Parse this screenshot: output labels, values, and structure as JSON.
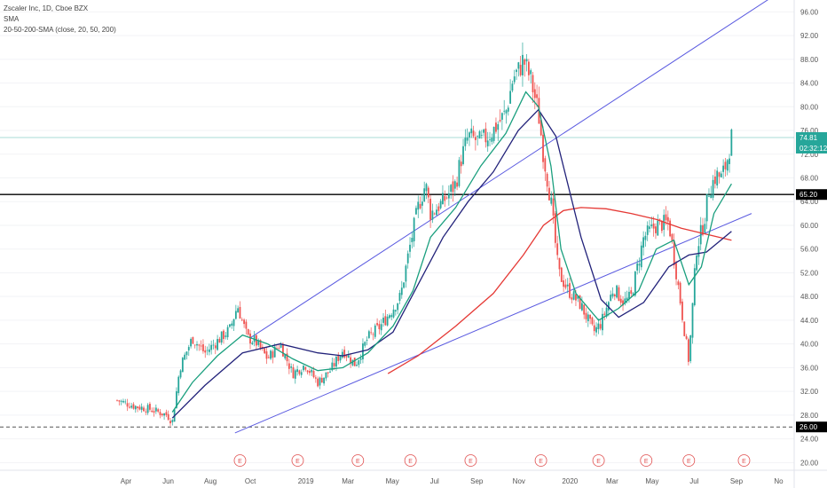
{
  "legend": {
    "title": "Zscaler Inc, 1D, Cboe BZX",
    "indicator1": "SMA",
    "indicator2": "20-50-200-SMA (close, 20, 50, 200)"
  },
  "price_badges": {
    "last_price": "74.81",
    "countdown": "02:32:12",
    "hline_price": "65.20",
    "dashed_price": "26.00"
  },
  "colors": {
    "candle_up": "#26a69a",
    "candle_down": "#ef5350",
    "sma20": "#1a9f7e",
    "sma50": "#22227a",
    "sma200": "#e53935",
    "trendline": "#5a5ae0",
    "last_price_line": "#26a69a",
    "event": "#e05050"
  },
  "events": {
    "label": "E"
  },
  "chart_data": {
    "type": "candlestick",
    "y_axis": {
      "ticks": [
        "96.00",
        "92.00",
        "88.00",
        "84.00",
        "80.00",
        "76.00",
        "72.00",
        "68.00",
        "64.00",
        "60.00",
        "56.00",
        "52.00",
        "48.00",
        "44.00",
        "40.00",
        "36.00",
        "32.00",
        "28.00",
        "24.00",
        "20.00"
      ],
      "range": [
        19,
        98
      ]
    },
    "x_axis": {
      "labels": [
        "Apr",
        "Jun",
        "Aug",
        "Oct",
        "2019",
        "Mar",
        "May",
        "Jul",
        "Sep",
        "Nov",
        "2020",
        "Mar",
        "May",
        "Jul",
        "Sep",
        "No"
      ],
      "range": [
        0,
        27
      ]
    },
    "price_path": [
      [
        0.0,
        30.5
      ],
      [
        0.7,
        29.5
      ],
      [
        1.3,
        29.0
      ],
      [
        2.0,
        28.0
      ],
      [
        2.2,
        26.8
      ],
      [
        2.5,
        36.0
      ],
      [
        3.0,
        41.0
      ],
      [
        3.5,
        38.5
      ],
      [
        4.0,
        40.5
      ],
      [
        4.5,
        42.5
      ],
      [
        4.8,
        46.5
      ],
      [
        5.2,
        41.0
      ],
      [
        5.5,
        40.5
      ],
      [
        6.0,
        37.5
      ],
      [
        6.5,
        40.0
      ],
      [
        7.0,
        35.0
      ],
      [
        7.5,
        36.5
      ],
      [
        8.0,
        33.5
      ],
      [
        8.5,
        35.5
      ],
      [
        9.0,
        39.0
      ],
      [
        9.5,
        36.5
      ],
      [
        10.0,
        41.0
      ],
      [
        10.5,
        43.0
      ],
      [
        11.0,
        46.0
      ],
      [
        11.3,
        48.0
      ],
      [
        11.7,
        57.0
      ],
      [
        12.0,
        63.0
      ],
      [
        12.3,
        67.0
      ],
      [
        12.5,
        62.0
      ],
      [
        13.0,
        64.0
      ],
      [
        13.5,
        67.0
      ],
      [
        13.7,
        71.0
      ],
      [
        14.0,
        75.0
      ],
      [
        14.5,
        74.0
      ],
      [
        15.0,
        76.0
      ],
      [
        15.5,
        79.0
      ],
      [
        15.8,
        85.0
      ],
      [
        16.0,
        86.0
      ],
      [
        16.2,
        88.0
      ],
      [
        16.5,
        84.5
      ],
      [
        16.8,
        79.0
      ],
      [
        17.0,
        72.0
      ],
      [
        17.3,
        64.0
      ],
      [
        17.6,
        52.0
      ],
      [
        18.0,
        49.0
      ],
      [
        18.5,
        46.5
      ],
      [
        19.0,
        42.0
      ],
      [
        19.3,
        43.5
      ],
      [
        19.8,
        49.5
      ],
      [
        20.2,
        47.0
      ],
      [
        20.5,
        48.0
      ],
      [
        21.0,
        58.0
      ],
      [
        21.5,
        60.0
      ],
      [
        22.0,
        60.5
      ],
      [
        22.3,
        52.0
      ],
      [
        22.6,
        43.0
      ],
      [
        22.8,
        37.0
      ],
      [
        23.1,
        56.0
      ],
      [
        23.4,
        60.5
      ],
      [
        23.6,
        66.0
      ],
      [
        23.9,
        68.5
      ],
      [
        24.1,
        68.0
      ],
      [
        24.3,
        70.5
      ],
      [
        24.5,
        74.81
      ]
    ],
    "sma20_path": [
      [
        2.2,
        28.5
      ],
      [
        3.0,
        33.5
      ],
      [
        4.0,
        38.0
      ],
      [
        5.0,
        41.5
      ],
      [
        6.0,
        40.0
      ],
      [
        7.0,
        37.5
      ],
      [
        8.0,
        35.5
      ],
      [
        9.0,
        36.0
      ],
      [
        10.0,
        38.5
      ],
      [
        11.0,
        43.0
      ],
      [
        11.8,
        49.0
      ],
      [
        12.5,
        58.0
      ],
      [
        13.5,
        63.0
      ],
      [
        14.5,
        70.0
      ],
      [
        15.5,
        75.5
      ],
      [
        16.3,
        82.5
      ],
      [
        16.8,
        80.0
      ],
      [
        17.3,
        70.0
      ],
      [
        17.7,
        56.0
      ],
      [
        18.3,
        48.5
      ],
      [
        19.2,
        44.0
      ],
      [
        20.0,
        46.0
      ],
      [
        20.8,
        49.0
      ],
      [
        21.5,
        56.0
      ],
      [
        22.2,
        57.5
      ],
      [
        22.8,
        50.0
      ],
      [
        23.3,
        53.0
      ],
      [
        23.8,
        62.0
      ],
      [
        24.5,
        67.0
      ]
    ],
    "sma50_path": [
      [
        2.2,
        27.5
      ],
      [
        3.5,
        33.0
      ],
      [
        5.0,
        38.5
      ],
      [
        6.5,
        40.0
      ],
      [
        8.0,
        38.5
      ],
      [
        9.0,
        38.0
      ],
      [
        10.0,
        39.0
      ],
      [
        11.0,
        42.0
      ],
      [
        12.0,
        50.0
      ],
      [
        13.0,
        58.0
      ],
      [
        14.0,
        64.0
      ],
      [
        15.0,
        69.0
      ],
      [
        16.0,
        76.0
      ],
      [
        16.8,
        79.5
      ],
      [
        17.5,
        75.0
      ],
      [
        18.5,
        58.0
      ],
      [
        19.3,
        47.5
      ],
      [
        20.0,
        44.5
      ],
      [
        21.0,
        47.0
      ],
      [
        22.0,
        53.0
      ],
      [
        22.8,
        55.0
      ],
      [
        23.5,
        55.5
      ],
      [
        24.5,
        59.0
      ]
    ],
    "sma200_path": [
      [
        10.8,
        35.0
      ],
      [
        12.0,
        38.0
      ],
      [
        13.5,
        43.0
      ],
      [
        15.0,
        48.5
      ],
      [
        16.2,
        55.0
      ],
      [
        17.0,
        60.0
      ],
      [
        17.8,
        62.5
      ],
      [
        18.5,
        63.0
      ],
      [
        19.5,
        62.8
      ],
      [
        20.5,
        62.0
      ],
      [
        21.5,
        61.0
      ],
      [
        22.5,
        59.5
      ],
      [
        23.5,
        58.5
      ],
      [
        24.5,
        57.5
      ]
    ],
    "trendlines": [
      [
        [
          5.3,
          41.0
        ],
        [
          26.3,
          99.0
        ]
      ],
      [
        [
          4.7,
          25.0
        ],
        [
          25.3,
          62.0
        ]
      ]
    ],
    "horizontal_lines": [
      {
        "price": 65.2,
        "style": "solid"
      },
      {
        "price": 26.0,
        "style": "dashed"
      },
      {
        "price": 74.81,
        "style": "last"
      }
    ],
    "events_x": [
      4.9,
      7.2,
      9.6,
      11.7,
      14.1,
      16.9,
      19.2,
      21.1,
      22.8,
      25.0
    ]
  }
}
